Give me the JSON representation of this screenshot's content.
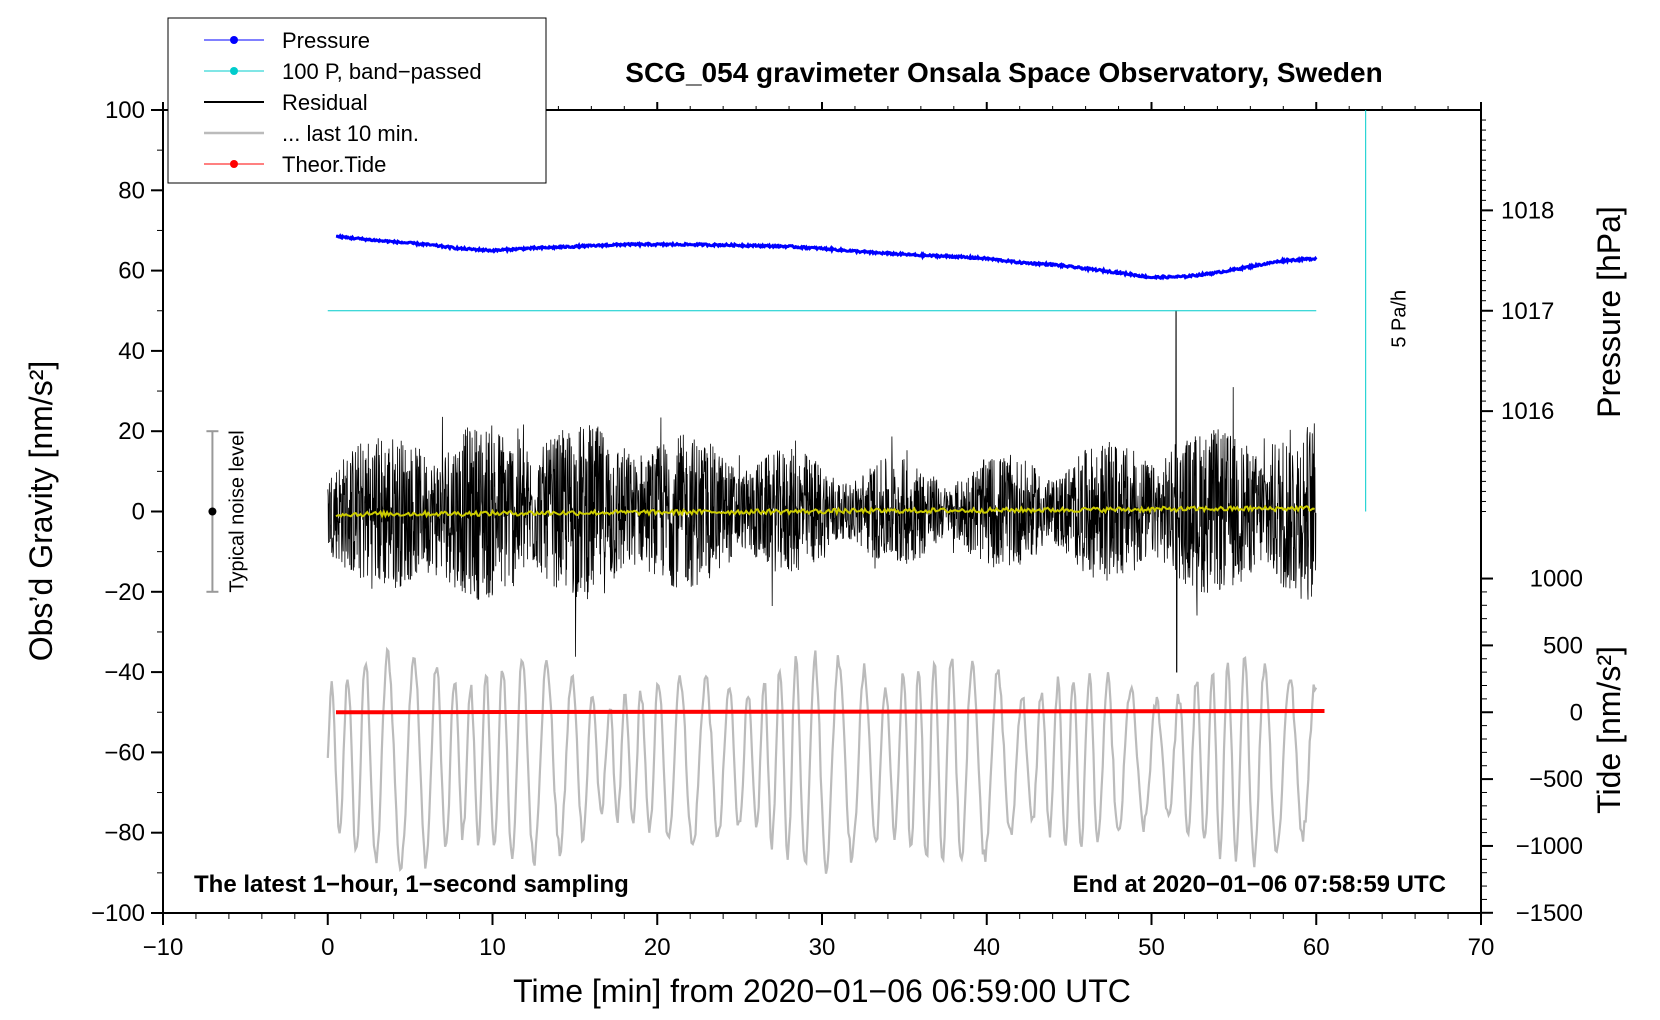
{
  "chart_data": {
    "type": "line",
    "title": "SCG_054 gravimeter Onsala Space Observatory, Sweden",
    "xlabel": "Time [min] from 2020−01−06 06:59:00 UTC",
    "ylabel_left": "Obs’d Gravity [nm/s²]",
    "ylabel_right_top": "Pressure [hPa]",
    "ylabel_right_bottom": "Tide [nm/s²]",
    "xlim": [
      -10,
      70
    ],
    "ylim": [
      -100,
      100
    ],
    "x_ticks": [
      {
        "v": -10,
        "label": "−10"
      },
      {
        "v": 0,
        "label": "0"
      },
      {
        "v": 10,
        "label": "10"
      },
      {
        "v": 20,
        "label": "20"
      },
      {
        "v": 30,
        "label": "30"
      },
      {
        "v": 40,
        "label": "40"
      },
      {
        "v": 50,
        "label": "50"
      },
      {
        "v": 60,
        "label": "60"
      },
      {
        "v": 70,
        "label": "70"
      }
    ],
    "y_ticks": [
      {
        "v": 100,
        "label": "100"
      },
      {
        "v": 80,
        "label": "80"
      },
      {
        "v": 60,
        "label": "60"
      },
      {
        "v": 40,
        "label": "40"
      },
      {
        "v": 20,
        "label": "20"
      },
      {
        "v": 0,
        "label": "0"
      },
      {
        "v": -20,
        "label": "−20"
      },
      {
        "v": -40,
        "label": "−40"
      },
      {
        "v": -60,
        "label": "−60"
      },
      {
        "v": -80,
        "label": "−80"
      },
      {
        "v": -100,
        "label": "−100"
      }
    ],
    "pressure_axis": {
      "ticks": [
        {
          "v": 1018,
          "label": "1018"
        },
        {
          "v": 1017,
          "label": "1017"
        },
        {
          "v": 1016,
          "label": "1016"
        }
      ],
      "gravity_at_1017": 50,
      "gravity_per_hPa": 25
    },
    "tide_axis": {
      "ticks": [
        {
          "v": 1000,
          "label": "1000"
        },
        {
          "v": 500,
          "label": "500"
        },
        {
          "v": 0,
          "label": "0"
        },
        {
          "v": -500,
          "label": "−500"
        },
        {
          "v": -1000,
          "label": "−1000"
        },
        {
          "v": -1500,
          "label": "−1500"
        }
      ],
      "gravity_at_0": -50,
      "gravity_per_nms2": 0.0333
    },
    "series": [
      {
        "name": "Pressure",
        "color": "#0000ff",
        "units": "gravity-scale",
        "x": [
          0.5,
          3,
          6,
          8,
          10,
          12,
          15,
          18,
          22,
          25,
          28,
          30,
          33,
          36,
          38,
          40,
          42,
          44,
          46,
          48,
          50,
          52,
          54,
          56,
          58,
          60
        ],
        "values": [
          68.5,
          67.5,
          66.5,
          65.5,
          65,
          65.5,
          66,
          66.5,
          66.5,
          66.3,
          66,
          65.5,
          64.5,
          63.8,
          63.5,
          63,
          62,
          61.5,
          60.5,
          59.5,
          58.3,
          58.5,
          59.5,
          61,
          62.5,
          63
        ]
      },
      {
        "name": "100 P, band−passed",
        "color": "#00cccc",
        "x": [
          0,
          60
        ],
        "values": [
          50,
          50
        ]
      },
      {
        "name": "Residual",
        "color": "#000000",
        "x_range": [
          0,
          60
        ],
        "amplitude": 18,
        "peak_x": 51.5,
        "peak_max": 50,
        "peak_min": -40
      },
      {
        "name": "... last 10 min.",
        "color": "#bbbbbb",
        "x_range": [
          0,
          60
        ],
        "center": -62,
        "amplitude": 18
      },
      {
        "name": "Theor.Tide",
        "color": "#ff0000",
        "x": [
          0.5,
          60.5
        ],
        "values": [
          -50,
          -49.7
        ]
      },
      {
        "name": "residual-smooth",
        "color": "#cccc00",
        "x": [
          0.5,
          20,
          40,
          60
        ],
        "values": [
          -0.7,
          -0.2,
          0.3,
          0.8
        ]
      }
    ],
    "legend": {
      "position": "top-left",
      "entries": [
        "Pressure",
        "100 P, band−passed",
        "Residual",
        "... last 10 min.",
        "Theor.Tide"
      ]
    },
    "annotations": {
      "noise_label": "Typical noise level",
      "rate_label": "5 Pa/h",
      "footer_left": "The latest 1−hour, 1−second sampling",
      "footer_right": "End at 2020−01−06 07:58:59 UTC"
    }
  }
}
